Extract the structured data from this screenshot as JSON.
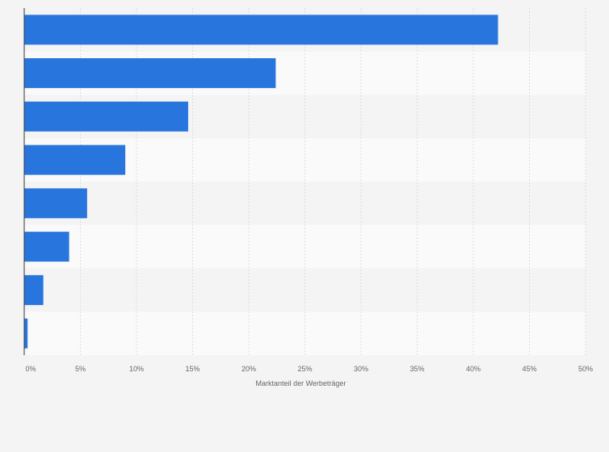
{
  "chart_data": {
    "type": "bar",
    "orientation": "horizontal",
    "title": "",
    "xlabel": "Marktanteil der Werbeträger",
    "ylabel": "",
    "xlim": [
      0,
      50
    ],
    "x_ticks": [
      0,
      5,
      10,
      15,
      20,
      25,
      30,
      35,
      40,
      45,
      50
    ],
    "tick_format": "{v}%",
    "grid": true,
    "categories": [
      "",
      "",
      "",
      "",
      "",
      "",
      "",
      ""
    ],
    "values": [
      42.2,
      22.4,
      14.6,
      9.0,
      5.6,
      4.0,
      1.7,
      0.3
    ],
    "colors": {
      "bar": "#2775dd",
      "band_dark": "#f4f4f4",
      "band_light": "#fafafa",
      "grid": "#dddddd",
      "axis": "#333333",
      "text": "#666666"
    }
  }
}
